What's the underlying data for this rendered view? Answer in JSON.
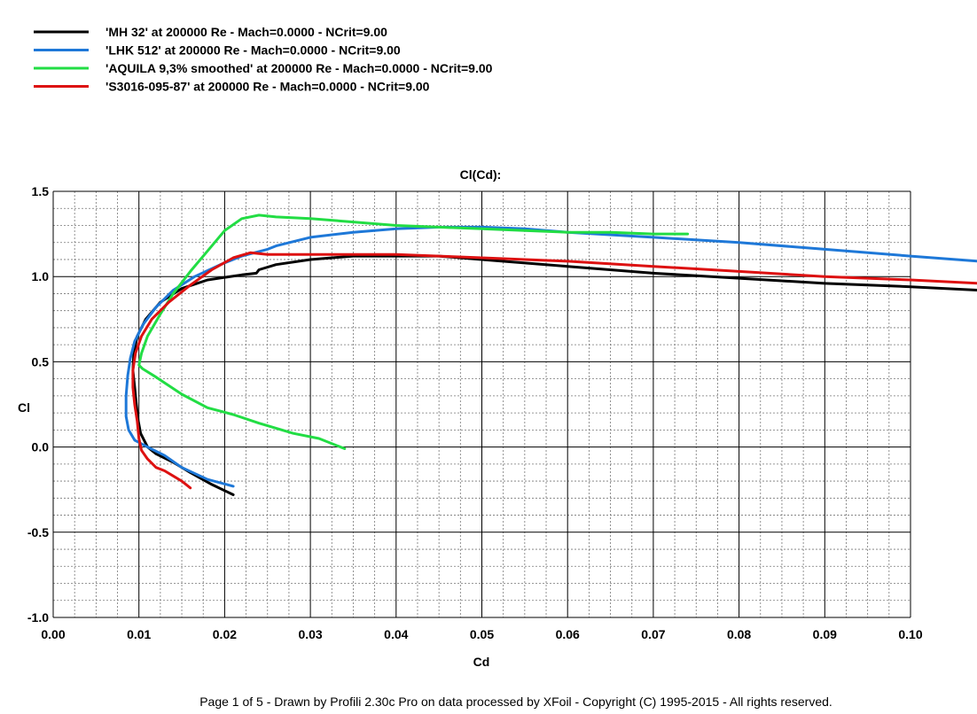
{
  "chart_data": {
    "type": "line",
    "title": "Cl(Cd):",
    "xlabel": "Cd",
    "ylabel": "Cl",
    "xlim": [
      0.0,
      0.1
    ],
    "ylim": [
      -1.0,
      1.5
    ],
    "x_ticks": [
      "0.00",
      "0.01",
      "0.02",
      "0.03",
      "0.04",
      "0.05",
      "0.06",
      "0.07",
      "0.08",
      "0.09",
      "0.10"
    ],
    "y_ticks": [
      "1.5",
      "1.0",
      "0.5",
      "0.0",
      "-0.5",
      "-1.0"
    ],
    "grid": "major solid, minor dashed",
    "legend_position": "top-left",
    "series": [
      {
        "name": "'MH 32' at 200000 Re - Mach=0.0000 - NCrit=9.00",
        "color": "#000000",
        "points": [
          [
            0.021,
            -0.28
          ],
          [
            0.0185,
            -0.22
          ],
          [
            0.016,
            -0.15
          ],
          [
            0.014,
            -0.09
          ],
          [
            0.012,
            -0.04
          ],
          [
            0.011,
            0.0
          ],
          [
            0.0102,
            0.08
          ],
          [
            0.0099,
            0.16
          ],
          [
            0.0097,
            0.25
          ],
          [
            0.0095,
            0.35
          ],
          [
            0.0093,
            0.45
          ],
          [
            0.0094,
            0.55
          ],
          [
            0.0098,
            0.65
          ],
          [
            0.0108,
            0.75
          ],
          [
            0.0125,
            0.85
          ],
          [
            0.015,
            0.93
          ],
          [
            0.018,
            0.98
          ],
          [
            0.022,
            1.01
          ],
          [
            0.0237,
            1.02
          ],
          [
            0.024,
            1.04
          ],
          [
            0.026,
            1.07
          ],
          [
            0.03,
            1.1
          ],
          [
            0.035,
            1.12
          ],
          [
            0.04,
            1.12
          ],
          [
            0.045,
            1.12
          ],
          [
            0.05,
            1.1
          ],
          [
            0.06,
            1.06
          ],
          [
            0.07,
            1.02
          ],
          [
            0.08,
            0.99
          ],
          [
            0.09,
            0.96
          ],
          [
            0.1,
            0.94
          ],
          [
            0.108,
            0.92
          ]
        ]
      },
      {
        "name": "'LHK  512' at 200000 Re - Mach=0.0000 - NCrit=9.00",
        "color": "#1e78d8",
        "points": [
          [
            0.021,
            -0.23
          ],
          [
            0.018,
            -0.19
          ],
          [
            0.015,
            -0.12
          ],
          [
            0.013,
            -0.05
          ],
          [
            0.011,
            0.0
          ],
          [
            0.0095,
            0.04
          ],
          [
            0.0088,
            0.1
          ],
          [
            0.0085,
            0.18
          ],
          [
            0.0085,
            0.3
          ],
          [
            0.0087,
            0.42
          ],
          [
            0.009,
            0.52
          ],
          [
            0.0095,
            0.62
          ],
          [
            0.0105,
            0.72
          ],
          [
            0.012,
            0.82
          ],
          [
            0.014,
            0.92
          ],
          [
            0.0165,
            1.0
          ],
          [
            0.0195,
            1.07
          ],
          [
            0.022,
            1.12
          ],
          [
            0.025,
            1.16
          ],
          [
            0.026,
            1.18
          ],
          [
            0.03,
            1.23
          ],
          [
            0.035,
            1.26
          ],
          [
            0.04,
            1.28
          ],
          [
            0.045,
            1.29
          ],
          [
            0.05,
            1.29
          ],
          [
            0.055,
            1.28
          ],
          [
            0.06,
            1.26
          ],
          [
            0.07,
            1.23
          ],
          [
            0.08,
            1.2
          ],
          [
            0.09,
            1.16
          ],
          [
            0.1,
            1.12
          ],
          [
            0.108,
            1.09
          ]
        ]
      },
      {
        "name": "'AQUILA 9,3% smoothed' at 200000 Re - Mach=0.0000 - NCrit=9.00",
        "color": "#22dd44",
        "points": [
          [
            0.034,
            -0.01
          ],
          [
            0.031,
            0.05
          ],
          [
            0.028,
            0.08
          ],
          [
            0.024,
            0.14
          ],
          [
            0.021,
            0.19
          ],
          [
            0.018,
            0.23
          ],
          [
            0.015,
            0.31
          ],
          [
            0.012,
            0.41
          ],
          [
            0.0104,
            0.46
          ],
          [
            0.01,
            0.48
          ],
          [
            0.0103,
            0.55
          ],
          [
            0.011,
            0.65
          ],
          [
            0.0125,
            0.78
          ],
          [
            0.014,
            0.9
          ],
          [
            0.016,
            1.03
          ],
          [
            0.018,
            1.15
          ],
          [
            0.02,
            1.27
          ],
          [
            0.022,
            1.34
          ],
          [
            0.024,
            1.36
          ],
          [
            0.026,
            1.35
          ],
          [
            0.03,
            1.34
          ],
          [
            0.035,
            1.32
          ],
          [
            0.04,
            1.3
          ],
          [
            0.045,
            1.29
          ],
          [
            0.05,
            1.28
          ],
          [
            0.055,
            1.27
          ],
          [
            0.06,
            1.26
          ],
          [
            0.065,
            1.26
          ],
          [
            0.07,
            1.25
          ],
          [
            0.074,
            1.25
          ]
        ]
      },
      {
        "name": "'S3016-095-87' at 200000 Re - Mach=0.0000 - NCrit=9.00",
        "color": "#dd1111",
        "points": [
          [
            0.016,
            -0.24
          ],
          [
            0.015,
            -0.2
          ],
          [
            0.014,
            -0.17
          ],
          [
            0.013,
            -0.14
          ],
          [
            0.012,
            -0.12
          ],
          [
            0.011,
            -0.07
          ],
          [
            0.0103,
            -0.02
          ],
          [
            0.01,
            0.05
          ],
          [
            0.0098,
            0.15
          ],
          [
            0.0095,
            0.25
          ],
          [
            0.0093,
            0.35
          ],
          [
            0.0093,
            0.45
          ],
          [
            0.0096,
            0.55
          ],
          [
            0.0103,
            0.65
          ],
          [
            0.0115,
            0.75
          ],
          [
            0.0135,
            0.85
          ],
          [
            0.016,
            0.95
          ],
          [
            0.0185,
            1.04
          ],
          [
            0.021,
            1.11
          ],
          [
            0.023,
            1.14
          ],
          [
            0.025,
            1.13
          ],
          [
            0.03,
            1.13
          ],
          [
            0.035,
            1.13
          ],
          [
            0.04,
            1.13
          ],
          [
            0.045,
            1.12
          ],
          [
            0.05,
            1.11
          ],
          [
            0.06,
            1.09
          ],
          [
            0.07,
            1.06
          ],
          [
            0.08,
            1.03
          ],
          [
            0.09,
            1.0
          ],
          [
            0.1,
            0.98
          ],
          [
            0.108,
            0.96
          ]
        ]
      }
    ]
  },
  "footer": "Page 1 of 5   -   Drawn by Profili 2.30c Pro on data processed by  XFoil - Copyright (C) 1995-2015 - All rights reserved."
}
